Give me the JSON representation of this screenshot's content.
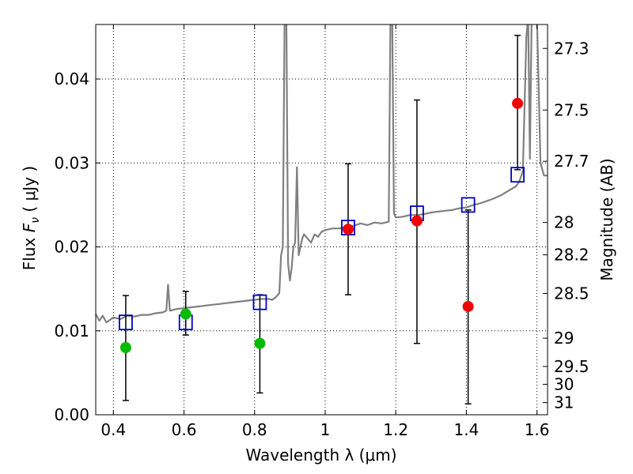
{
  "chart_data": {
    "type": "scatter",
    "xlabel": "Wavelength  λ (μm)",
    "ylabel": "Flux  F_ν  ( μJy )",
    "ylabel_parts": {
      "prefix": "Flux  ",
      "symbol": "F",
      "subscript": "ν",
      "suffix": "  ( μJy )"
    },
    "y2label": "Magnitude (AB)",
    "xlim": [
      0.35,
      1.63
    ],
    "ylim": [
      0.0,
      0.0465
    ],
    "x_ticks": [
      0.4,
      0.6,
      0.8,
      1.0,
      1.2,
      1.4,
      1.6
    ],
    "x_tick_labels": [
      "0.4",
      "0.6",
      "0.8",
      "1",
      "1.2",
      "1.4",
      "1.6"
    ],
    "y_ticks": [
      0.0,
      0.01,
      0.02,
      0.03,
      0.04
    ],
    "y_tick_labels": [
      "0.00",
      "0.01",
      "0.02",
      "0.03",
      "0.04"
    ],
    "y2_ticks": [
      "27.3",
      "27.5",
      "27.7",
      "28",
      "28.2",
      "28.5",
      "29",
      "29.5",
      "30",
      "31"
    ],
    "grid": true,
    "colors": {
      "spectrum": "#808080",
      "model_box": "#0000cc",
      "green_point": "#00bb00",
      "red_point": "#ee0000",
      "errorbar": "#000000"
    },
    "series": [
      {
        "kind": "line",
        "x": [
          0.35,
          0.36,
          0.37,
          0.38,
          0.4,
          0.42,
          0.44,
          0.46,
          0.48,
          0.5,
          0.52,
          0.54,
          0.55,
          0.555,
          0.56,
          0.57,
          0.58,
          0.6,
          0.62,
          0.64,
          0.66,
          0.68,
          0.7,
          0.72,
          0.74,
          0.76,
          0.78,
          0.8,
          0.82,
          0.84,
          0.85,
          0.86,
          0.87,
          0.875,
          0.88,
          0.885,
          0.89,
          0.895,
          0.9,
          0.905,
          0.91,
          0.915,
          0.92,
          0.925,
          0.93,
          0.935,
          0.94,
          0.95,
          0.96,
          0.97,
          0.98,
          0.99,
          1.0,
          1.02,
          1.04,
          1.06,
          1.08,
          1.1,
          1.12,
          1.14,
          1.16,
          1.18,
          1.185,
          1.19,
          1.195,
          1.2,
          1.22,
          1.24,
          1.26,
          1.28,
          1.3,
          1.32,
          1.34,
          1.36,
          1.38,
          1.4,
          1.42,
          1.44,
          1.46,
          1.48,
          1.5,
          1.52,
          1.54,
          1.55,
          1.56,
          1.57,
          1.575,
          1.58,
          1.585,
          1.59,
          1.6,
          1.61,
          1.62,
          1.63
        ],
        "y": [
          0.012,
          0.0112,
          0.0118,
          0.011,
          0.0116,
          0.0114,
          0.0118,
          0.0117,
          0.0119,
          0.0119,
          0.0121,
          0.0122,
          0.0124,
          0.0155,
          0.0124,
          0.0125,
          0.0126,
          0.0127,
          0.0128,
          0.0129,
          0.013,
          0.0131,
          0.0132,
          0.0133,
          0.0134,
          0.0135,
          0.0136,
          0.0137,
          0.0138,
          0.0138,
          0.0137,
          0.014,
          0.0145,
          0.019,
          0.02,
          0.0475,
          0.0475,
          0.018,
          0.016,
          0.0175,
          0.02,
          0.0205,
          0.0295,
          0.019,
          0.02,
          0.021,
          0.0215,
          0.021,
          0.0205,
          0.0215,
          0.0212,
          0.0218,
          0.022,
          0.0222,
          0.0222,
          0.0224,
          0.0225,
          0.0228,
          0.0226,
          0.0229,
          0.0228,
          0.023,
          0.0475,
          0.0475,
          0.024,
          0.0235,
          0.0236,
          0.0238,
          0.0238,
          0.0239,
          0.0241,
          0.0242,
          0.0243,
          0.0244,
          0.0246,
          0.0247,
          0.025,
          0.0252,
          0.0255,
          0.0258,
          0.0262,
          0.0267,
          0.0272,
          0.0278,
          0.029,
          0.045,
          0.0475,
          0.0305,
          0.0475,
          0.0475,
          0.0475,
          0.03,
          0.0285,
          0.0285
        ]
      },
      {
        "kind": "model-boxes",
        "x": [
          0.435,
          0.605,
          0.815,
          1.065,
          1.26,
          1.405,
          1.545
        ],
        "y": [
          0.011,
          0.011,
          0.0134,
          0.0223,
          0.024,
          0.025,
          0.0286
        ]
      },
      {
        "kind": "points",
        "color": "green",
        "x": [
          0.435,
          0.605,
          0.815
        ],
        "y": [
          0.008,
          0.012,
          0.0085
        ],
        "err_low": [
          0.0017,
          0.0095,
          0.0026
        ],
        "err_high": [
          0.0142,
          0.0147,
          0.0143
        ]
      },
      {
        "kind": "points",
        "color": "red",
        "x": [
          1.065,
          1.26,
          1.405,
          1.545
        ],
        "y": [
          0.0221,
          0.0231,
          0.0129,
          0.0371
        ],
        "err_low": [
          0.0143,
          0.0085,
          0.0013,
          0.0292
        ],
        "err_high": [
          0.0299,
          0.0375,
          0.0244,
          0.0452
        ]
      }
    ]
  }
}
